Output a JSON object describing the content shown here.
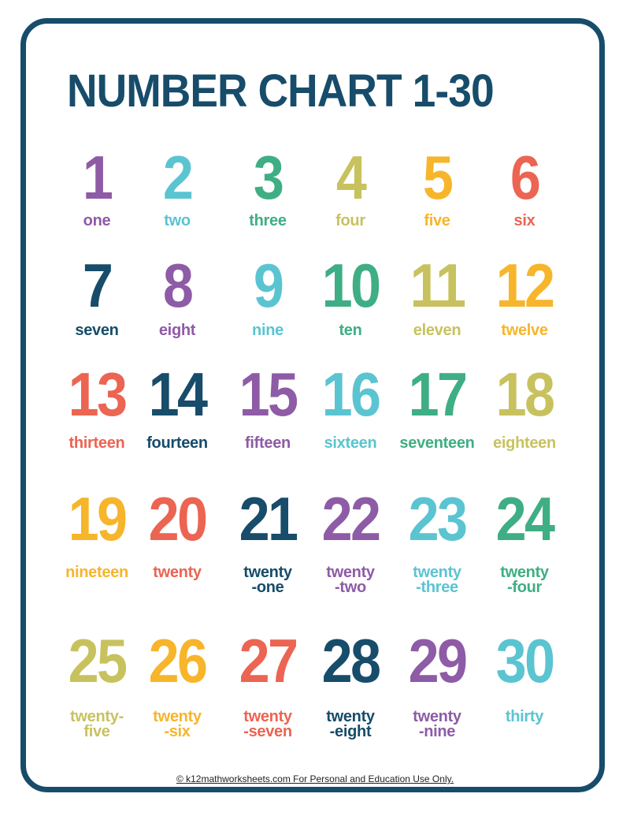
{
  "title": "NUMBER CHART 1-30",
  "colors": {
    "border": "#174c6a",
    "purple": "#8e5ba6",
    "cyan": "#5bc4d1",
    "green": "#3fae84",
    "olive": "#c8c25e",
    "orange": "#f7b52b",
    "red": "#ec6452",
    "navy": "#174c6a"
  },
  "numbers": [
    {
      "n": "1",
      "w": "one",
      "c": "purple"
    },
    {
      "n": "2",
      "w": "two",
      "c": "cyan"
    },
    {
      "n": "3",
      "w": "three",
      "c": "green"
    },
    {
      "n": "4",
      "w": "four",
      "c": "olive"
    },
    {
      "n": "5",
      "w": "five",
      "c": "orange"
    },
    {
      "n": "6",
      "w": "six",
      "c": "red"
    },
    {
      "n": "7",
      "w": "seven",
      "c": "navy"
    },
    {
      "n": "8",
      "w": "eight",
      "c": "purple"
    },
    {
      "n": "9",
      "w": "nine",
      "c": "cyan"
    },
    {
      "n": "10",
      "w": "ten",
      "c": "green"
    },
    {
      "n": "11",
      "w": "eleven",
      "c": "olive"
    },
    {
      "n": "12",
      "w": "twelve",
      "c": "orange"
    },
    {
      "n": "13",
      "w": "thirteen",
      "c": "red"
    },
    {
      "n": "14",
      "w": "fourteen",
      "c": "navy"
    },
    {
      "n": "15",
      "w": "fifteen",
      "c": "purple"
    },
    {
      "n": "16",
      "w": "sixteen",
      "c": "cyan"
    },
    {
      "n": "17",
      "w": "seventeen",
      "c": "green"
    },
    {
      "n": "18",
      "w": "eighteen",
      "c": "olive"
    },
    {
      "n": "19",
      "w": "nineteen",
      "c": "orange"
    },
    {
      "n": "20",
      "w": "twenty",
      "c": "red"
    },
    {
      "n": "21",
      "w": "twenty\n-one",
      "c": "navy"
    },
    {
      "n": "22",
      "w": "twenty\n-two",
      "c": "purple"
    },
    {
      "n": "23",
      "w": "twenty\n-three",
      "c": "cyan"
    },
    {
      "n": "24",
      "w": "twenty\n-four",
      "c": "green"
    },
    {
      "n": "25",
      "w": "twenty-\nfive",
      "c": "olive"
    },
    {
      "n": "26",
      "w": "twenty\n-six",
      "c": "orange"
    },
    {
      "n": "27",
      "w": "twenty\n-seven",
      "c": "red"
    },
    {
      "n": "28",
      "w": "twenty\n-eight",
      "c": "navy"
    },
    {
      "n": "29",
      "w": "twenty\n-nine",
      "c": "purple"
    },
    {
      "n": "30",
      "w": "thirty",
      "c": "cyan"
    }
  ],
  "footer": "© k12mathworksheets.com For Personal and Education Use Only."
}
